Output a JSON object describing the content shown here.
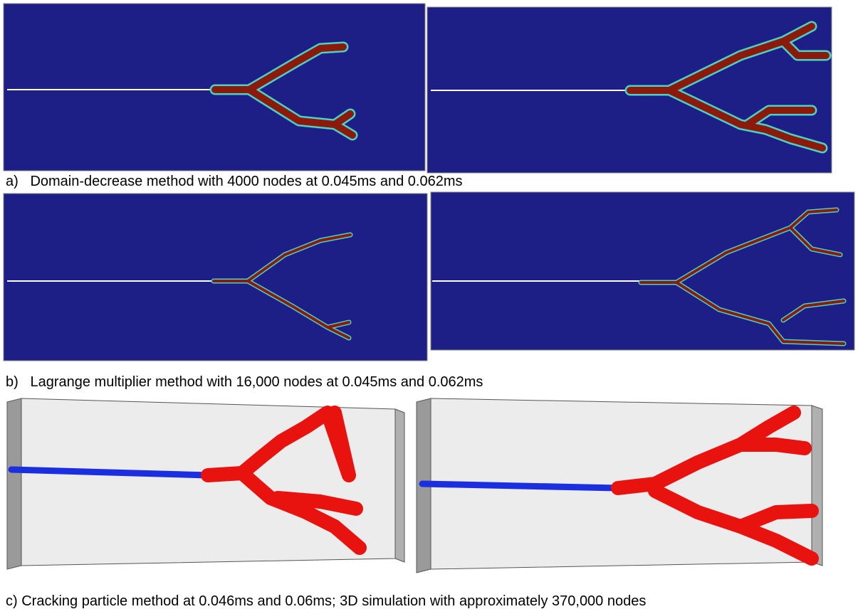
{
  "captions": {
    "a": "a)   Domain-decrease method with 4000 nodes at 0.045ms and 0.062ms",
    "b": "b)   Lagrange multiplier method with 16,000 nodes at 0.045ms and 0.062ms",
    "c": "c) Cracking particle method at 0.046ms and 0.06ms; 3D simulation with approximately 370,000 nodes"
  }
}
